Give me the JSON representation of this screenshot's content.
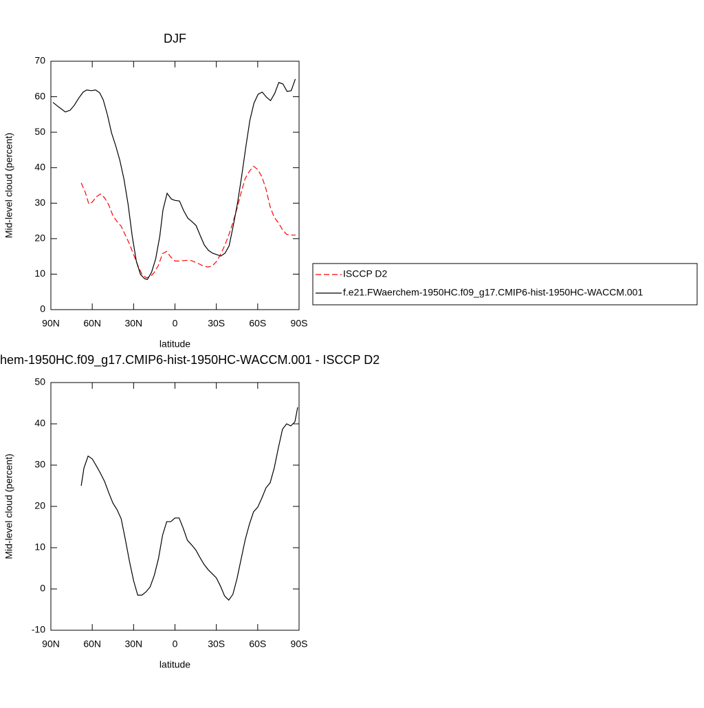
{
  "chart_data": [
    {
      "type": "line",
      "title": "DJF",
      "x_label": "latitude",
      "y_label": "Mid-level cloud (percent)",
      "xlim": [
        90,
        -90
      ],
      "xticks": [
        {
          "value": 90,
          "label": "90N"
        },
        {
          "value": 60,
          "label": "60N"
        },
        {
          "value": 30,
          "label": "30N"
        },
        0,
        {
          "value": -30,
          "label": "30S"
        },
        {
          "value": -60,
          "label": "60S"
        },
        {
          "value": -90,
          "label": "90S"
        }
      ],
      "ylim": [
        0,
        70
      ],
      "yticks": [
        0,
        10,
        20,
        30,
        40,
        50,
        60,
        70
      ],
      "legend": "right",
      "series": [
        {
          "name": "ISCCP D2",
          "color": "#ff0000",
          "dash": true,
          "x": [
            68,
            65,
            62.5,
            60,
            57,
            54,
            51,
            48,
            45,
            42,
            39,
            36,
            33,
            30,
            27,
            24,
            21,
            18,
            15,
            12,
            9,
            6,
            3,
            0,
            -3,
            -6,
            -9,
            -12,
            -15,
            -18,
            -21,
            -24,
            -27,
            -30,
            -33,
            -36,
            -39,
            -42,
            -45,
            -48,
            -51,
            -54,
            -57,
            -60,
            -63,
            -66,
            -69,
            -72,
            -75,
            -78,
            -81,
            -84,
            -87.5
          ],
          "values": [
            35.7,
            33,
            29.8,
            30.3,
            31.8,
            32.6,
            31.5,
            29.5,
            26.5,
            24.8,
            23.5,
            21,
            18.5,
            15.5,
            12.5,
            10,
            9,
            9.2,
            10.5,
            12.5,
            15.8,
            16.4,
            14.8,
            13.7,
            13.7,
            13.8,
            13.9,
            13.8,
            13.3,
            12.8,
            12.2,
            12,
            12.3,
            13.5,
            15.5,
            18,
            21,
            24.5,
            28.5,
            33,
            37,
            39,
            40.4,
            39.5,
            37.5,
            34,
            29,
            26,
            24.5,
            22.5,
            21.2,
            21,
            21
          ]
        },
        {
          "name": "f.e21.FWaerchem-1950HC.f09_g17.CMIP6-hist-1950HC-WACCM.001",
          "color": "#000000",
          "dash": false,
          "x": [
            88.5,
            84,
            79.5,
            76,
            73,
            70,
            66.6,
            64,
            60.6,
            57.6,
            54.6,
            52,
            49,
            46,
            43,
            40,
            37,
            34,
            31,
            28,
            25,
            22,
            20,
            17,
            14,
            11,
            8.7,
            5.7,
            2.7,
            0.2,
            -3.3,
            -6.3,
            -9.3,
            -12.3,
            -15.3,
            -18.3,
            -21.3,
            -24.3,
            -27.3,
            -30.3,
            -33.3,
            -36.3,
            -39.3,
            -42.3,
            -45.3,
            -48.3,
            -51.3,
            -54.3,
            -57.3,
            -60.3,
            -63.3,
            -66.3,
            -69.3,
            -72.3,
            -75.3,
            -78.3,
            -81.3,
            -84.3,
            -87.3
          ],
          "values": [
            58.4,
            57,
            55.7,
            56.2,
            57.6,
            59.5,
            61.3,
            61.9,
            61.7,
            61.9,
            61.1,
            59.1,
            54.9,
            49.8,
            46.2,
            42.1,
            36.8,
            29.7,
            20.7,
            13.6,
            9.9,
            8.7,
            8.5,
            10.5,
            14.3,
            20.7,
            28.1,
            32.8,
            31.2,
            30.8,
            30.6,
            27.9,
            25.8,
            24.8,
            23.7,
            20.9,
            18.2,
            16.7,
            15.9,
            15.5,
            15.1,
            15.9,
            18,
            23.7,
            29.9,
            37.4,
            45.6,
            53.3,
            58.2,
            60.7,
            61.3,
            59.9,
            58.9,
            60.9,
            64,
            63.6,
            61.5,
            61.7,
            65
          ]
        }
      ]
    },
    {
      "type": "line",
      "title": "hem-1950HC.f09_g17.CMIP6-hist-1950HC-WACCM.001 - ISCCP D2",
      "x_label": "latitude",
      "y_label": "Mid-level cloud (percent)",
      "xlim": [
        90,
        -90
      ],
      "xticks": [
        {
          "value": 90,
          "label": "90N"
        },
        {
          "value": 60,
          "label": "60N"
        },
        {
          "value": 30,
          "label": "30N"
        },
        0,
        {
          "value": -30,
          "label": "30S"
        },
        {
          "value": -60,
          "label": "60S"
        },
        {
          "value": -90,
          "label": "90S"
        }
      ],
      "ylim": [
        -10,
        50
      ],
      "yticks": [
        -10,
        0,
        10,
        20,
        30,
        40,
        50
      ],
      "series": [
        {
          "color": "#000000",
          "dash": false,
          "x": [
            68,
            66,
            63,
            60,
            57,
            54,
            51,
            48,
            45,
            42,
            39,
            36,
            33,
            30,
            27,
            24,
            21,
            18,
            15,
            12,
            9,
            6,
            3,
            0,
            -3,
            -6,
            -9,
            -12,
            -15,
            -18,
            -21,
            -24,
            -27,
            -30,
            -33,
            -36,
            -39,
            -42,
            -45,
            -48,
            -51,
            -54,
            -57,
            -60,
            -63,
            -66,
            -69,
            -72,
            -75,
            -78,
            -81,
            -84,
            -87,
            -89
          ],
          "values": [
            25,
            29.3,
            32.2,
            31.5,
            29.8,
            28,
            26,
            23.3,
            20.8,
            19.2,
            17,
            12,
            6.7,
            2,
            -1.5,
            -1.5,
            -0.7,
            0.5,
            3.3,
            7.3,
            13,
            16.3,
            16.3,
            17.2,
            17.2,
            14.7,
            11.8,
            10.7,
            9.5,
            7.7,
            6,
            4.7,
            3.7,
            2.7,
            0.7,
            -1.7,
            -2.7,
            -1.3,
            2.5,
            7.3,
            12,
            15.7,
            18.7,
            19.8,
            22,
            24.5,
            25.7,
            29.3,
            34.2,
            38.7,
            40,
            39.5,
            40.5,
            44
          ]
        }
      ]
    }
  ]
}
